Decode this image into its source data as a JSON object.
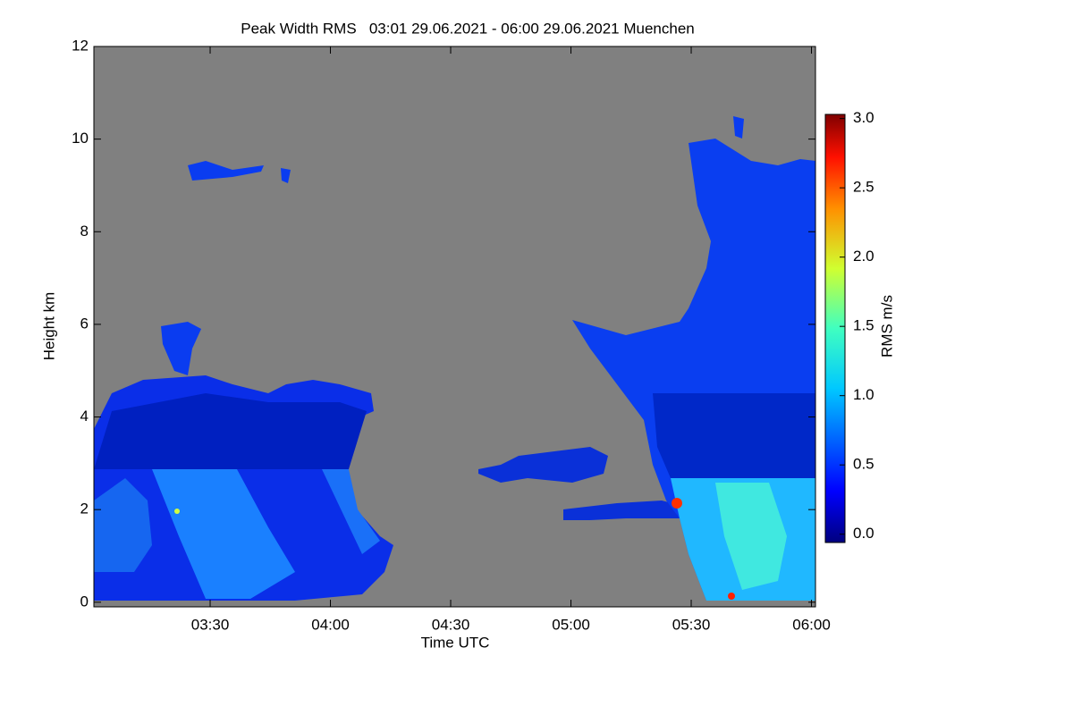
{
  "chart_data": {
    "type": "heatmap",
    "title": "Peak Width RMS   03:01 29.06.2021 - 06:00 29.06.2021 Muenchen",
    "x_label": "Time UTC",
    "y_label": "Height km",
    "xlim": [
      181,
      361
    ],
    "xticks": [
      {
        "value": 210,
        "label": "03:30"
      },
      {
        "value": 240,
        "label": "04:00"
      },
      {
        "value": 270,
        "label": "04:30"
      },
      {
        "value": 300,
        "label": "05:00"
      },
      {
        "value": 330,
        "label": "05:30"
      },
      {
        "value": 360,
        "label": "06:00"
      }
    ],
    "ylim": [
      -0.1,
      12
    ],
    "yticks": [
      0,
      2,
      4,
      6,
      8,
      10,
      12
    ],
    "colorbar": {
      "label": "RMS m/s",
      "lim": [
        -0.06,
        3.03
      ],
      "ticks": [
        {
          "value": 0,
          "label": "0.0"
        },
        {
          "value": 0.5,
          "label": "0.5"
        },
        {
          "value": 1,
          "label": "1.0"
        },
        {
          "value": 1.5,
          "label": "1.5"
        },
        {
          "value": 2,
          "label": "2.0"
        },
        {
          "value": 2.5,
          "label": "2.5"
        },
        {
          "value": 3,
          "label": "3.0"
        }
      ]
    }
  }
}
